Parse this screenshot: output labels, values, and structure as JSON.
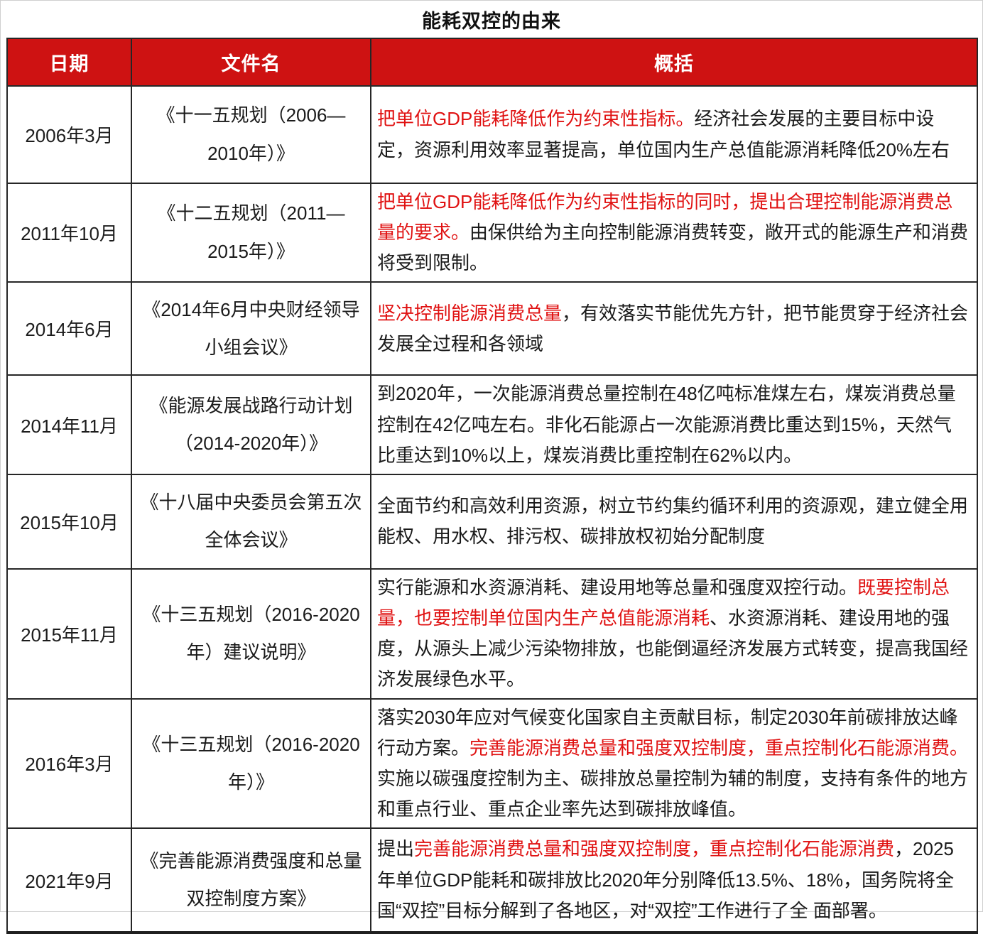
{
  "title": "能耗双控的由来",
  "colors": {
    "header_bg": "#ce1212",
    "header_text": "#ffffff",
    "highlight_red": "#e01212",
    "body_text": "#1a1a1a"
  },
  "table": {
    "headers": [
      "日期",
      "文件名",
      "概括"
    ],
    "rows": [
      {
        "date": "2006年3月",
        "document": "《十一五规划（2006—2010年）》",
        "summary": [
          {
            "text": "把单位GDP能耗降低作为约束性指标。",
            "highlight": true
          },
          {
            "text": "经济社会发展的主要目标中设定，资源利用效率显著提高，单位国内生产总值能源消耗降低20%左右",
            "highlight": false
          }
        ]
      },
      {
        "date": "2011年10月",
        "document": "《十二五规划（2011—2015年）》",
        "summary": [
          {
            "text": "把单位GDP能耗降低作为约束性指标的同时，提出合理控制能源消费总量的要求。",
            "highlight": true
          },
          {
            "text": "由保供给为主向控制能源消费转变，敞开式的能源生产和消费将受到限制。",
            "highlight": false
          }
        ]
      },
      {
        "date": "2014年6月",
        "document": "《2014年6月中央财经领导小组会议》",
        "summary": [
          {
            "text": "坚决控制能源消费总量",
            "highlight": true
          },
          {
            "text": "，有效落实节能优先方针，把节能贯穿于经济社会发展全过程和各领域",
            "highlight": false
          }
        ]
      },
      {
        "date": "2014年11月",
        "document": "《能源发展战路行动计划（2014-2020年）》",
        "summary": [
          {
            "text": "到2020年，一次能源消费总量控制在48亿吨标准煤左右，煤炭消费总量控制在42亿吨左右。非化石能源占一次能源消费比重达到15%，天然气比重达到10%以上，煤炭消费比重控制在62%以内。",
            "highlight": false
          }
        ]
      },
      {
        "date": "2015年10月",
        "document": "《十八届中央委员会第五次全体会议》",
        "summary": [
          {
            "text": "全面节约和高效利用资源，树立节约集约循环利用的资源观，建立健全用能权、用水权、排污权、碳排放权初始分配制度",
            "highlight": false
          }
        ]
      },
      {
        "date": "2015年11月",
        "document": "《十三五规划（2016-2020年）建议说明》",
        "summary": [
          {
            "text": "实行能源和水资源消耗、建设用地等总量和强度双控行动。",
            "highlight": false
          },
          {
            "text": "既要控制总量，也要控制单位国内生产总值能源消耗",
            "highlight": true
          },
          {
            "text": "、水资源消耗、建设用地的强度，从源头上减少污染物排放，也能倒逼经济发展方式转变，提高我国经济发展绿色水平。",
            "highlight": false
          }
        ]
      },
      {
        "date": "2016年3月",
        "document": "《十三五规划（2016-2020年）》",
        "summary": [
          {
            "text": "落实2030年应对气候变化国家自主贡献目标，制定2030年前碳排放达峰行动方案。",
            "highlight": false
          },
          {
            "text": "完善能源消费总量和强度双控制度，重点控制化石能源消费。",
            "highlight": true
          },
          {
            "text": "实施以碳强度控制为主、碳排放总量控制为辅的制度，支持有条件的地方和重点行业、重点企业率先达到碳排放峰值。",
            "highlight": false
          }
        ]
      },
      {
        "date": "2021年9月",
        "document": "《完善能源消费强度和总量双控制度方案》",
        "summary": [
          {
            "text": "提出",
            "highlight": false
          },
          {
            "text": "完善能源消费总量和强度双控制度，重点控制化石能源消费",
            "highlight": true
          },
          {
            "text": "，2025年单位GDP能耗和碳排放比2020年分别降低13.5%、18%，国务院将全国“双控”目标分解到了各地区，对“双控”工作进行了全 面部署。",
            "highlight": false
          }
        ]
      }
    ]
  }
}
